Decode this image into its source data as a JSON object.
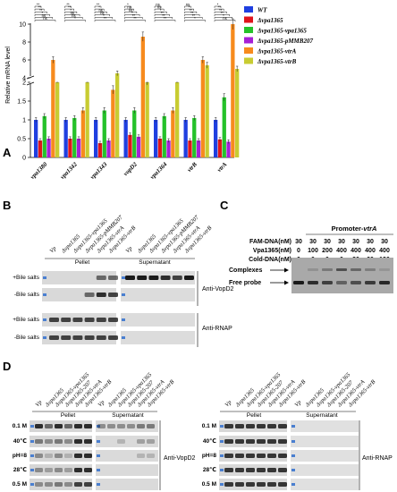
{
  "panels": {
    "a": "A",
    "b": "B",
    "c": "C",
    "d": "D"
  },
  "panel_a": {
    "y_label": "Relative mRNA level",
    "legend": [
      {
        "label": "WT",
        "color": "#1f3fe0"
      },
      {
        "label": "Δvpa1365",
        "color": "#e0141c"
      },
      {
        "label": "Δvpa1365-vpa1365",
        "color": "#25c22a"
      },
      {
        "label": "Δvpa1365-pMMB207",
        "color": "#a61fd6"
      },
      {
        "label": "Δvpa1365-vtrA",
        "color": "#f78b1d"
      },
      {
        "label": "Δvpa1365-vtrB",
        "color": "#c8cc32"
      }
    ],
    "sig_marks": [
      "**",
      "**",
      "**",
      "*",
      "ns",
      "ns",
      "*"
    ]
  },
  "chart_data": {
    "type": "bar",
    "ylabel": "Relative mRNA level",
    "y_ticks": [
      0,
      0.5,
      1,
      1.5,
      2,
      4,
      6,
      8,
      10
    ],
    "y_axis_break": [
      2,
      4
    ],
    "categories": [
      "vpa1380",
      "vpa1342",
      "vpa1343",
      "vopD2",
      "vpa1364",
      "vtrB",
      "vtrA"
    ],
    "series": [
      {
        "name": "WT",
        "values": [
          1.0,
          1.0,
          1.0,
          1.0,
          1.0,
          1.0,
          1.0
        ]
      },
      {
        "name": "Δvpa1365",
        "values": [
          0.45,
          0.5,
          0.38,
          0.6,
          0.5,
          0.45,
          0.48
        ]
      },
      {
        "name": "Δvpa1365-vpa1365",
        "values": [
          1.1,
          1.05,
          1.25,
          1.25,
          1.1,
          1.05,
          1.6
        ]
      },
      {
        "name": "Δvpa1365-pMMB207",
        "values": [
          0.5,
          0.5,
          0.45,
          0.55,
          0.45,
          0.45,
          0.42
        ]
      },
      {
        "name": "Δvpa1365-vtrA",
        "values": [
          6.0,
          1.25,
          1.8,
          8.6,
          1.25,
          6.0,
          10.0
        ]
      },
      {
        "name": "Δvpa1365-vtrB",
        "values": [
          3.6,
          3.6,
          4.5,
          2.05,
          3.6,
          5.4,
          5.0
        ]
      }
    ]
  },
  "panel_b": {
    "lanes": [
      "Vp",
      "Δvpa1365",
      "Δvpa1365-vpa1365",
      "Δvpa1365-pMMB207",
      "Δvpa1365-vtrA",
      "Δvpa1365-vtrB"
    ],
    "group_pellet": "Pellet",
    "group_supernatant": "Supernatant",
    "rows": [
      "+Bile salts",
      "-Bile salts",
      "+Bile salts",
      "-Bile salts"
    ],
    "antibody_1": "Anti-VopD2",
    "antibody_2": "Anti-RNAP"
  },
  "panel_c": {
    "title": "Promoter-vtrA",
    "rows": [
      {
        "label": "FAM-DNA(nM)",
        "values": [
          "30",
          "30",
          "30",
          "30",
          "30",
          "30",
          "30"
        ]
      },
      {
        "label": "Vpa1365(nM)",
        "values": [
          "0",
          "100",
          "200",
          "400",
          "400",
          "400",
          "400"
        ]
      },
      {
        "label": "Cold-DNA(nM)",
        "values": [
          "0",
          "0",
          "0",
          "0",
          "30",
          "60",
          "120"
        ]
      }
    ],
    "complexes": "Complexes",
    "free_probe": "Free probe"
  },
  "panel_d": {
    "lanes": [
      "Vp",
      "Δvpa1365",
      "Δvpa1365-vpa1365",
      "Δvpa1365-207",
      "Δvpa1365-vtrA",
      "Δvpa1365-vtrB"
    ],
    "group_pellet": "Pellet",
    "group_supernatant": "Supernatant",
    "conditions": [
      "0.1 M",
      "40℃",
      "pH=8",
      "28℃",
      "0.5 M"
    ],
    "antibody_left": "Anti-VopD2",
    "antibody_right": "Anti-RNAP"
  }
}
